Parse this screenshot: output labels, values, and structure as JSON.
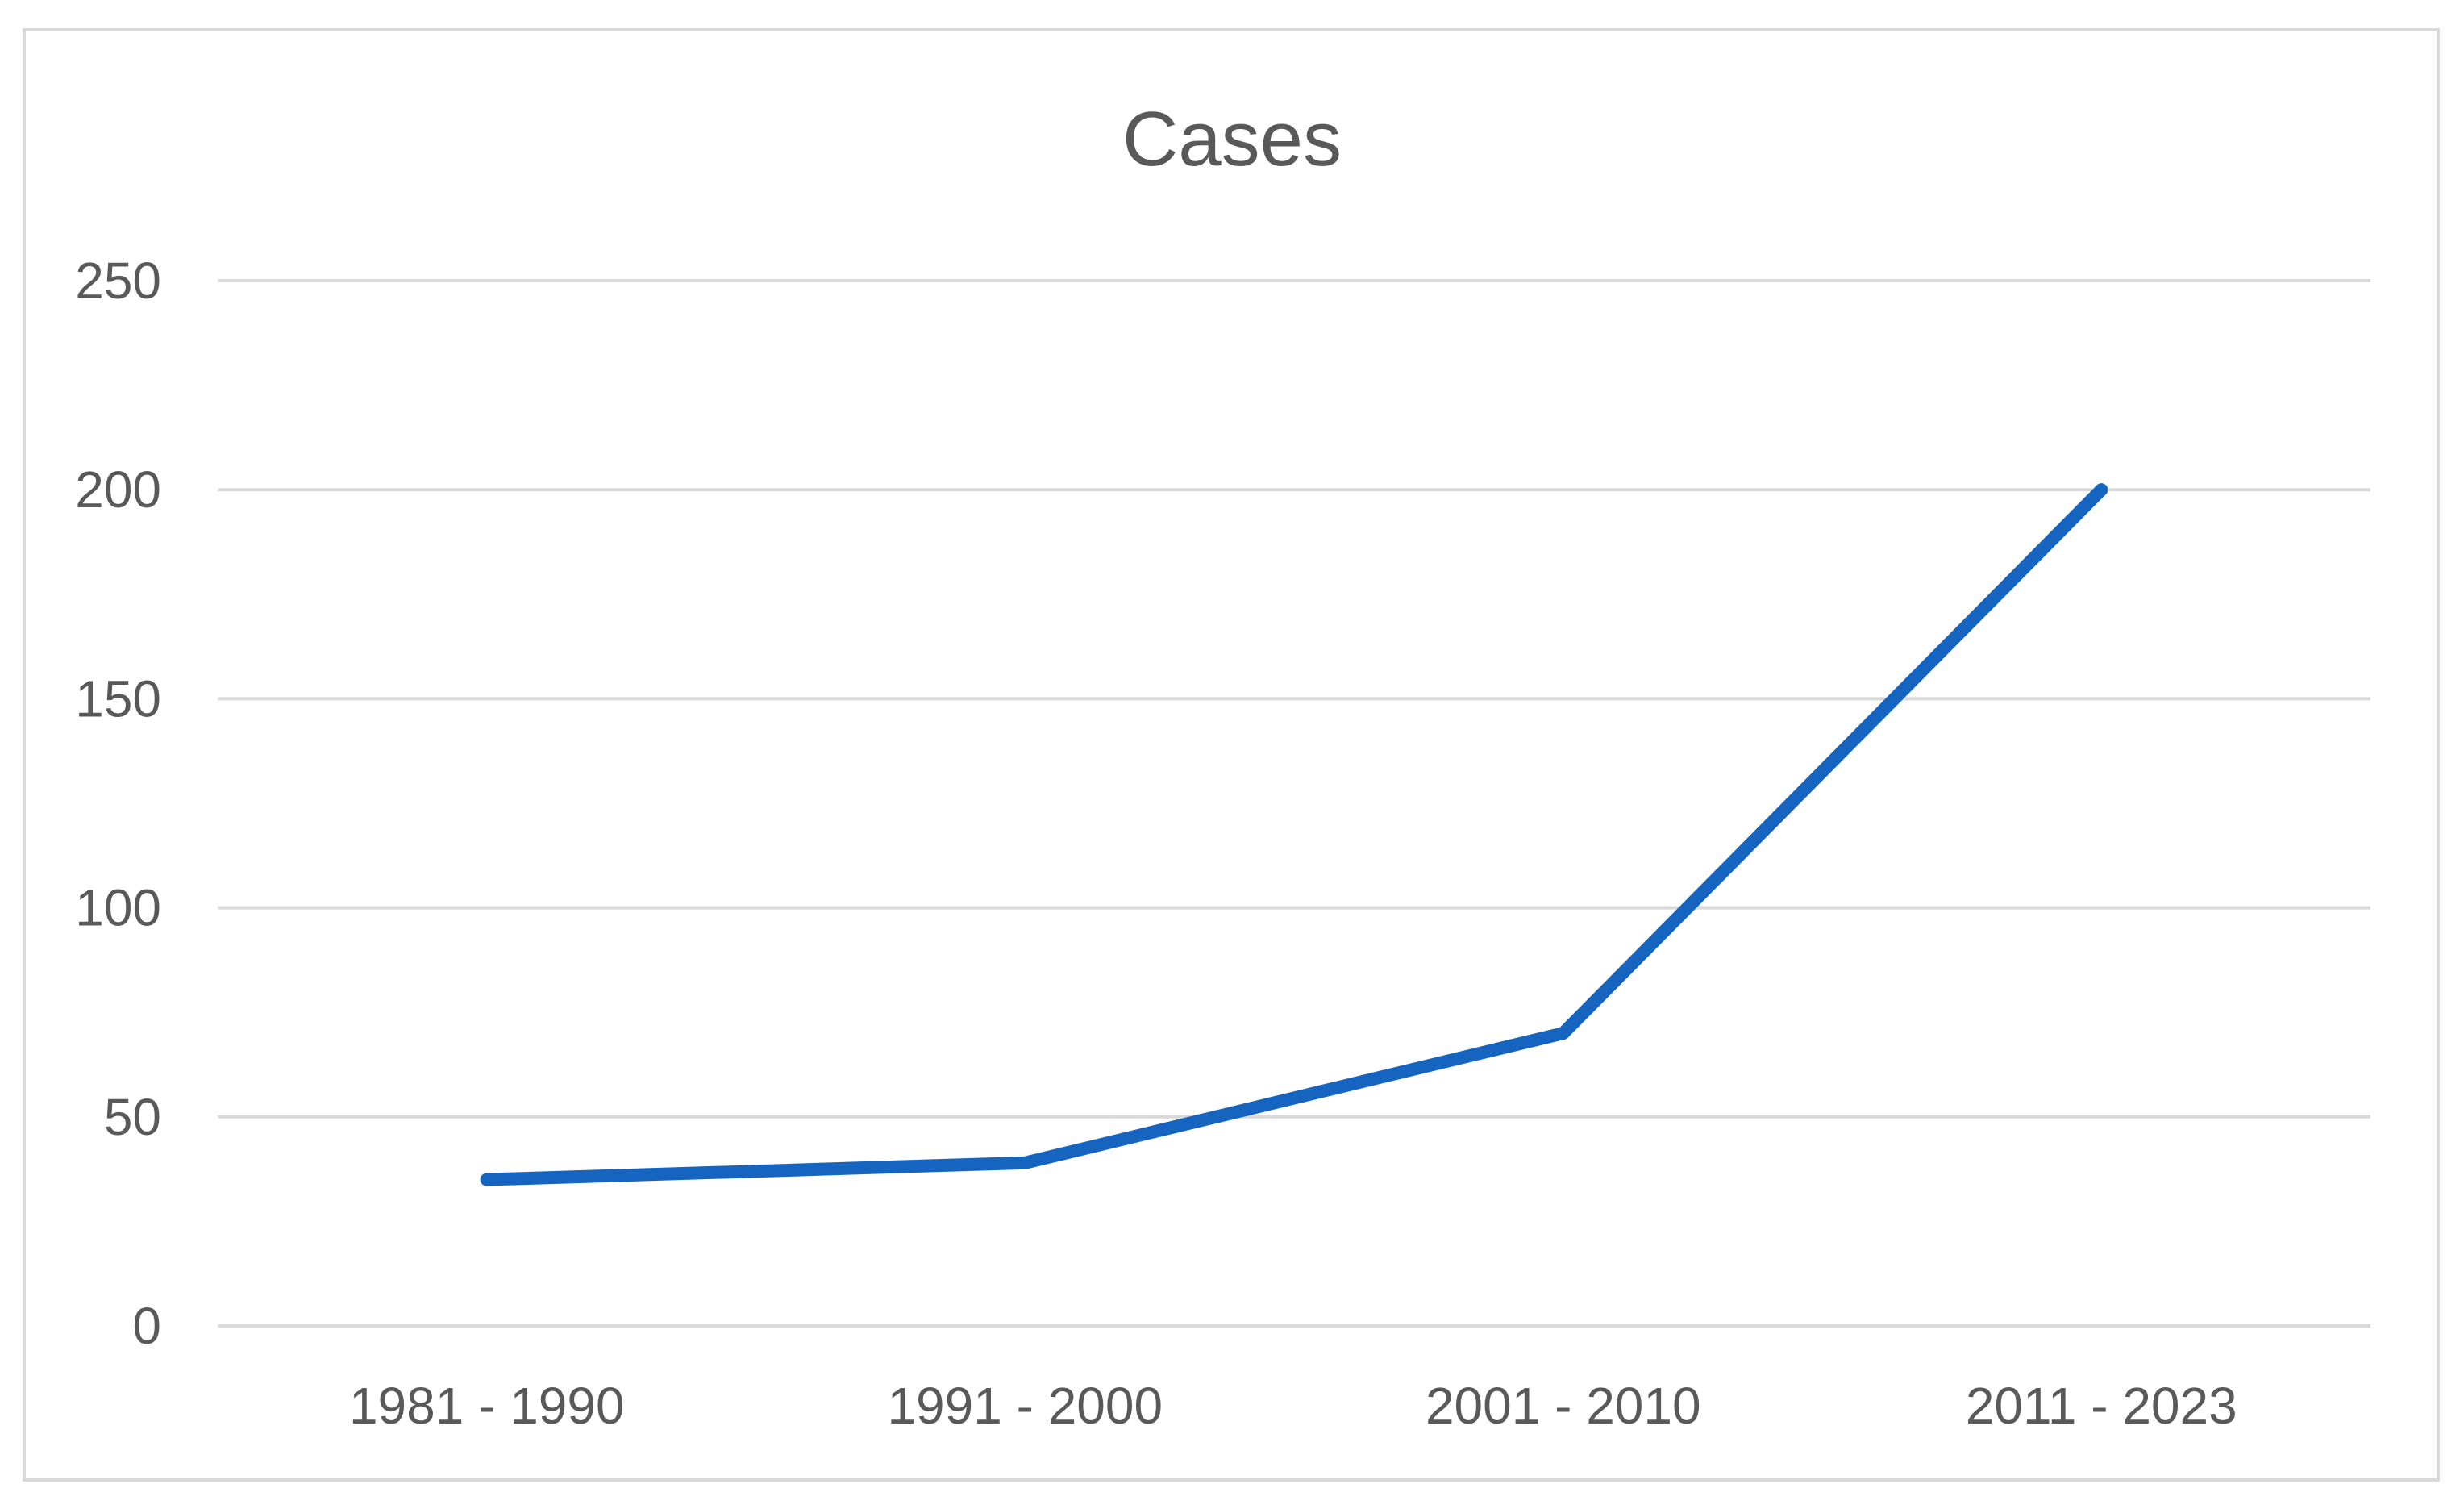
{
  "chart_data": {
    "type": "line",
    "title": "Cases",
    "xlabel": "",
    "ylabel": "",
    "categories": [
      "1981 - 1990",
      "1991 - 2000",
      "2001 - 2010",
      "2011 - 2023"
    ],
    "series": [
      {
        "values": [
          35,
          39,
          70,
          200
        ]
      }
    ],
    "ylim": [
      0,
      250
    ],
    "yticks": [
      0,
      50,
      100,
      150,
      200,
      250
    ],
    "grid": true,
    "legend": "none",
    "line_color": "#1565c0"
  }
}
